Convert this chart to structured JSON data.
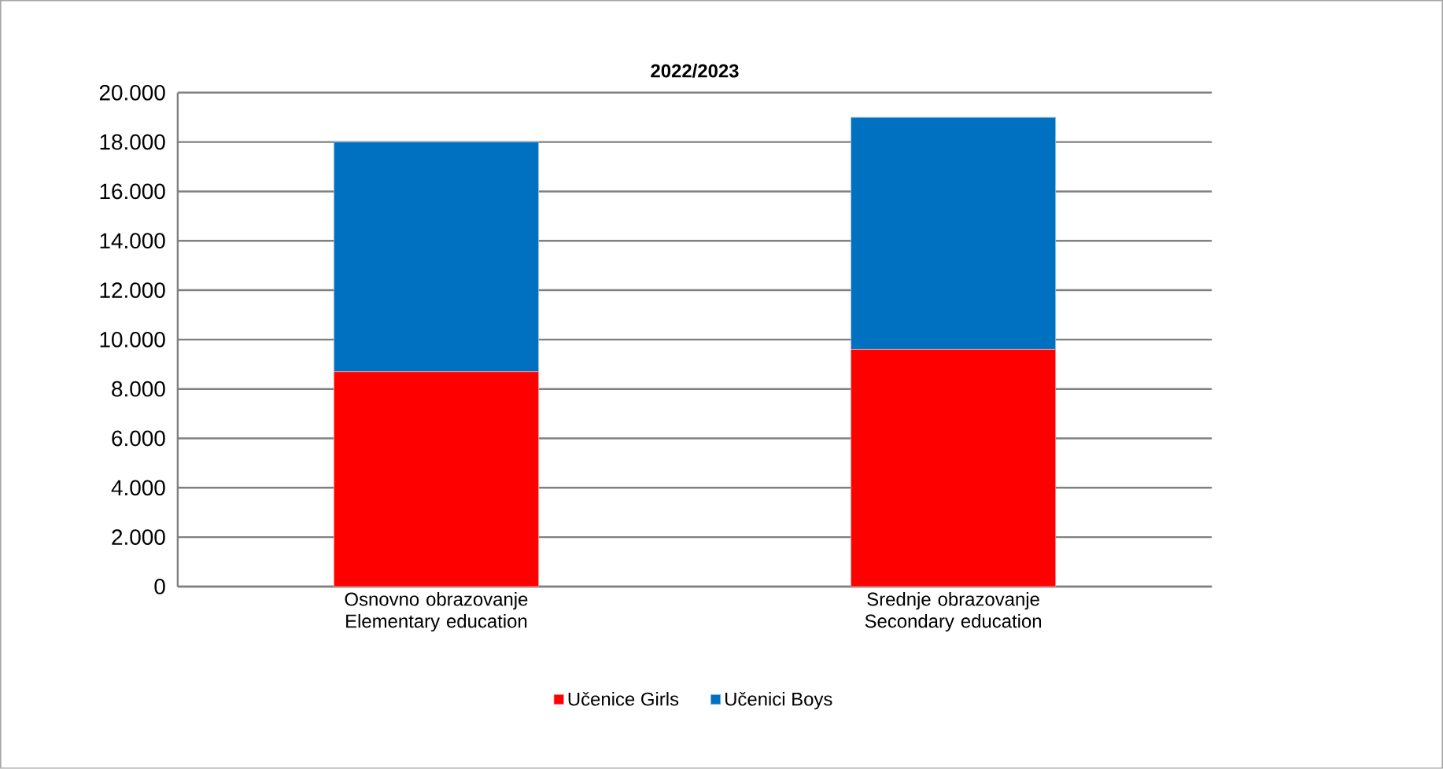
{
  "chart_data": {
    "type": "bar",
    "title": "2022/2023",
    "stacked": true,
    "categories": [
      "Osnovno obrazovanje  Elementary education",
      "Srednje obrazovanje Secondary education"
    ],
    "series": [
      {
        "name": "Učenice Girls",
        "color": "#ff0000",
        "values": [
          8700,
          9600
        ]
      },
      {
        "name": "Učenici Boys",
        "color": "#0070c0",
        "values": [
          9300,
          9400
        ]
      }
    ],
    "ylim": [
      0,
      20000
    ],
    "yticks": [
      {
        "value": 0,
        "label": "0"
      },
      {
        "value": 2000,
        "label": "2.000"
      },
      {
        "value": 4000,
        "label": "4.000"
      },
      {
        "value": 6000,
        "label": "6.000"
      },
      {
        "value": 8000,
        "label": "8.000"
      },
      {
        "value": 10000,
        "label": "10.000"
      },
      {
        "value": 12000,
        "label": "12.000"
      },
      {
        "value": 14000,
        "label": "14.000"
      },
      {
        "value": 16000,
        "label": "16.000"
      },
      {
        "value": 18000,
        "label": "18.000"
      },
      {
        "value": 20000,
        "label": "20.000"
      }
    ],
    "grid": "y",
    "legend": "bottom"
  }
}
